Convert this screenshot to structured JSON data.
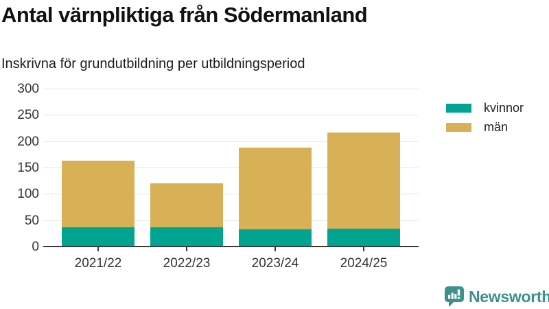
{
  "title": "Antal värnpliktiga från Södermanland",
  "subtitle": "Inskrivna för grundutbildning per utbildningsperiod",
  "colors": {
    "kvinnor": "#00a491",
    "man": "#d8b156",
    "axis": "#3a3a3a",
    "grid": "#e4e4e4",
    "brand_teal": "#3c918c"
  },
  "chart_data": {
    "type": "bar",
    "stacked": true,
    "title": "Antal värnpliktiga från Södermanland",
    "subtitle": "Inskrivna för grundutbildning per utbildningsperiod",
    "categories": [
      "2021/22",
      "2022/23",
      "2023/24",
      "2024/25"
    ],
    "series": [
      {
        "name": "kvinnor",
        "color": "#00a491",
        "values": [
          37,
          36,
          33,
          34
        ]
      },
      {
        "name": "män",
        "color": "#d8b156",
        "values": [
          126,
          84,
          155,
          182
        ]
      }
    ],
    "totals": [
      163,
      120,
      188,
      216
    ],
    "xlabel": "",
    "ylabel": "",
    "ylim": [
      0,
      300
    ],
    "yticks": [
      0,
      50,
      100,
      150,
      200,
      250,
      300
    ],
    "grid": "horizontal",
    "legend_position": "right"
  },
  "legend": {
    "items": [
      {
        "label": "kvinnor",
        "color": "#00a491"
      },
      {
        "label": "män",
        "color": "#d8b156"
      }
    ]
  },
  "branding": {
    "logo_text": "Newsworthy",
    "logo_icon": "bar-chart-speech-bubble-icon"
  }
}
